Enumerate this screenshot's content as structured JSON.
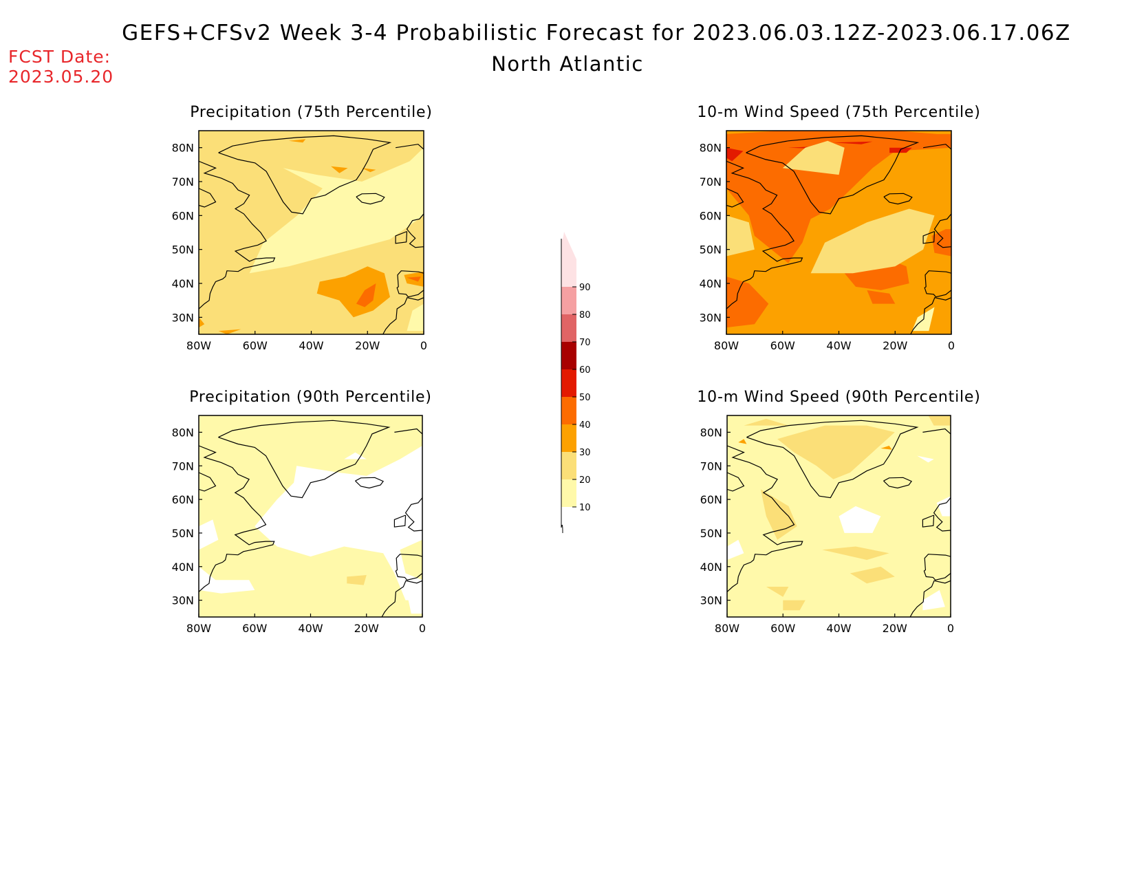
{
  "header": {
    "title": "GEFS+CFSv2 Week 3-4 Probabilistic Forecast for 2023.06.03.12Z-2023.06.17.06Z",
    "region": "North Atlantic",
    "fcst_label": "FCST Date:",
    "fcst_date": "2023.05.20"
  },
  "colors": {
    "levels": [
      {
        "from": 10,
        "to": 20,
        "color": "#fff9aa"
      },
      {
        "from": 20,
        "to": 30,
        "color": "#fbdf78"
      },
      {
        "from": 30,
        "to": 40,
        "color": "#fca100"
      },
      {
        "from": 40,
        "to": 50,
        "color": "#fc6c00"
      },
      {
        "from": 50,
        "to": 60,
        "color": "#e31a00"
      },
      {
        "from": 60,
        "to": 70,
        "color": "#a80000"
      },
      {
        "from": 70,
        "to": 80,
        "color": "#e06465"
      },
      {
        "from": 80,
        "to": 90,
        "color": "#f5a0a2"
      },
      {
        "from": 90,
        "to": 100,
        "color": "#fde2e4"
      }
    ],
    "coast": "#000000"
  },
  "colorbar": {
    "labels": [
      "10",
      "20",
      "30",
      "40",
      "50",
      "60",
      "70",
      "80",
      "90"
    ]
  },
  "maps": [
    {
      "id": "precip-75",
      "title": "Precipitation (75th Percentile)",
      "lat_labels": [
        "80N",
        "70N",
        "60N",
        "50N",
        "40N",
        "30N"
      ],
      "lon_labels": [
        "80W",
        "60W",
        "40W",
        "20W",
        "0"
      ],
      "background_level": 20
    },
    {
      "id": "wind-75",
      "title": "10-m Wind Speed (75th Percentile)",
      "lat_labels": [
        "80N",
        "70N",
        "60N",
        "50N",
        "40N",
        "30N"
      ],
      "lon_labels": [
        "80W",
        "60W",
        "40W",
        "20W",
        "0"
      ],
      "background_level": 30
    },
    {
      "id": "precip-90",
      "title": "Precipitation (90th Percentile)",
      "lat_labels": [
        "80N",
        "70N",
        "60N",
        "50N",
        "40N",
        "30N"
      ],
      "lon_labels": [
        "80W",
        "60W",
        "40W",
        "20W",
        "0"
      ],
      "background_level": 10
    },
    {
      "id": "wind-90",
      "title": "10-m Wind Speed (90th Percentile)",
      "lat_labels": [
        "80N",
        "70N",
        "60N",
        "50N",
        "40N",
        "30N"
      ],
      "lon_labels": [
        "80W",
        "60W",
        "40W",
        "20W",
        "0"
      ],
      "background_level": 10
    }
  ]
}
